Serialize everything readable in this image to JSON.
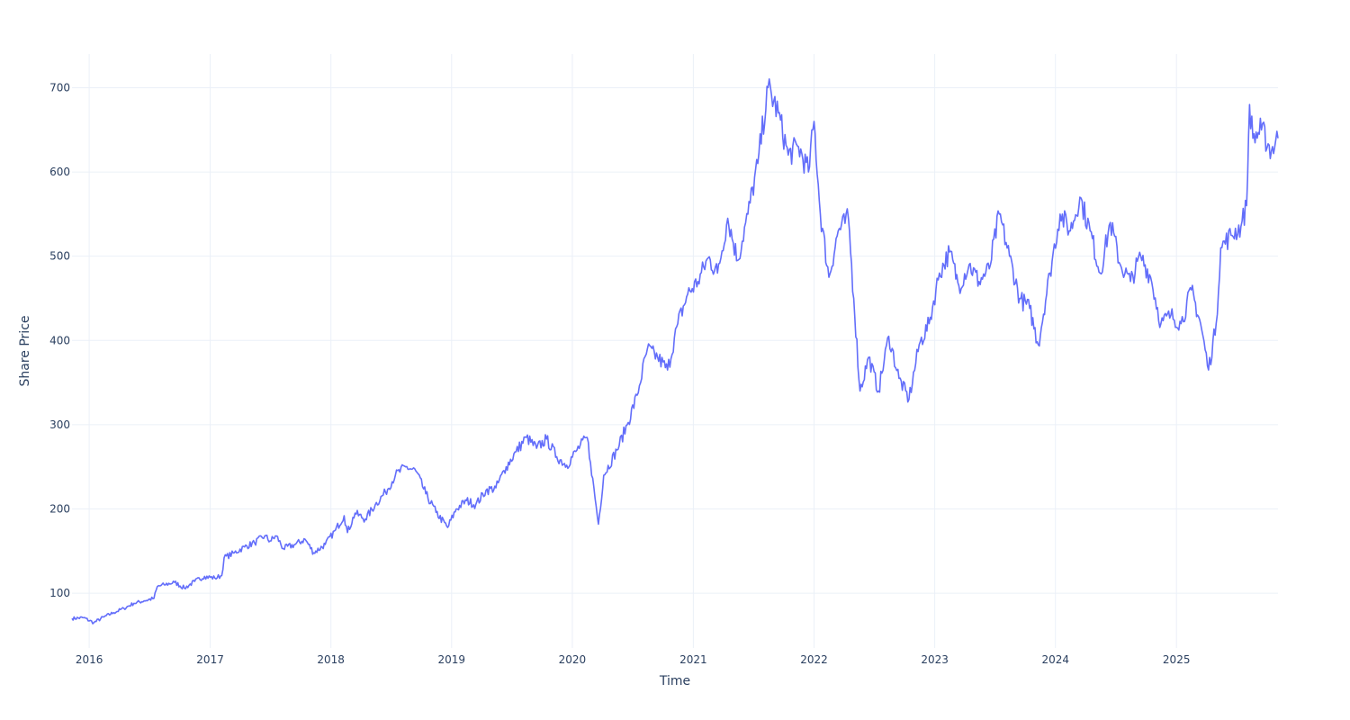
{
  "chart_data": {
    "type": "line",
    "xlabel": "Time",
    "ylabel": "Share Price",
    "xlim": [
      "2015-11-10",
      "2025-11-04"
    ],
    "ylim": [
      35,
      740
    ],
    "grid": true,
    "x_ticks": [
      "2016",
      "2017",
      "2018",
      "2019",
      "2020",
      "2021",
      "2022",
      "2023",
      "2024",
      "2025"
    ],
    "y_ticks": [
      100,
      200,
      300,
      400,
      500,
      600,
      700
    ],
    "series": [
      {
        "color": "#636efa",
        "points": [
          [
            "2015-11-10",
            70
          ],
          [
            "2015-12-15",
            71
          ],
          [
            "2016-01-15",
            65
          ],
          [
            "2016-02-15",
            72
          ],
          [
            "2016-03-15",
            77
          ],
          [
            "2016-04-15",
            82
          ],
          [
            "2016-05-15",
            88
          ],
          [
            "2016-06-15",
            91
          ],
          [
            "2016-07-15",
            94
          ],
          [
            "2016-07-25",
            108
          ],
          [
            "2016-08-15",
            110
          ],
          [
            "2016-09-15",
            113
          ],
          [
            "2016-10-15",
            106
          ],
          [
            "2016-11-15",
            114
          ],
          [
            "2016-12-15",
            120
          ],
          [
            "2017-01-15",
            118
          ],
          [
            "2017-02-05",
            121
          ],
          [
            "2017-02-12",
            142
          ],
          [
            "2017-03-15",
            148
          ],
          [
            "2017-04-15",
            155
          ],
          [
            "2017-05-15",
            160
          ],
          [
            "2017-06-15",
            168
          ],
          [
            "2017-07-01",
            162
          ],
          [
            "2017-07-20",
            168
          ],
          [
            "2017-08-10",
            153
          ],
          [
            "2017-09-15",
            158
          ],
          [
            "2017-10-15",
            164
          ],
          [
            "2017-11-10",
            148
          ],
          [
            "2017-12-15",
            158
          ],
          [
            "2018-01-15",
            175
          ],
          [
            "2018-02-10",
            192
          ],
          [
            "2018-02-20",
            172
          ],
          [
            "2018-03-15",
            195
          ],
          [
            "2018-04-15",
            188
          ],
          [
            "2018-05-15",
            205
          ],
          [
            "2018-06-15",
            220
          ],
          [
            "2018-07-15",
            240
          ],
          [
            "2018-08-15",
            250
          ],
          [
            "2018-09-15",
            245
          ],
          [
            "2018-10-15",
            218
          ],
          [
            "2018-11-15",
            196
          ],
          [
            "2018-12-20",
            178
          ],
          [
            "2019-01-15",
            200
          ],
          [
            "2019-02-15",
            210
          ],
          [
            "2019-03-15",
            205
          ],
          [
            "2019-04-15",
            222
          ],
          [
            "2019-05-15",
            225
          ],
          [
            "2019-06-15",
            250
          ],
          [
            "2019-07-15",
            268
          ],
          [
            "2019-08-15",
            285
          ],
          [
            "2019-09-15",
            272
          ],
          [
            "2019-10-15",
            283
          ],
          [
            "2019-11-15",
            262
          ],
          [
            "2019-12-15",
            252
          ],
          [
            "2020-01-15",
            270
          ],
          [
            "2020-02-15",
            285
          ],
          [
            "2020-02-25",
            255
          ],
          [
            "2020-03-20",
            182
          ],
          [
            "2020-04-05",
            240
          ],
          [
            "2020-05-15",
            270
          ],
          [
            "2020-06-15",
            300
          ],
          [
            "2020-07-15",
            335
          ],
          [
            "2020-08-15",
            390
          ],
          [
            "2020-09-15",
            380
          ],
          [
            "2020-10-15",
            365
          ],
          [
            "2020-11-15",
            420
          ],
          [
            "2020-12-15",
            455
          ],
          [
            "2021-01-15",
            470
          ],
          [
            "2021-02-15",
            498
          ],
          [
            "2021-03-15",
            480
          ],
          [
            "2021-04-15",
            545
          ],
          [
            "2021-05-15",
            495
          ],
          [
            "2021-06-15",
            550
          ],
          [
            "2021-07-15",
            610
          ],
          [
            "2021-08-15",
            700
          ],
          [
            "2021-09-15",
            670
          ],
          [
            "2021-10-15",
            620
          ],
          [
            "2021-11-15",
            630
          ],
          [
            "2021-12-15",
            600
          ],
          [
            "2022-01-01",
            660
          ],
          [
            "2022-01-20",
            550
          ],
          [
            "2022-02-15",
            475
          ],
          [
            "2022-03-15",
            530
          ],
          [
            "2022-04-15",
            545
          ],
          [
            "2022-05-01",
            450
          ],
          [
            "2022-05-20",
            340
          ],
          [
            "2022-06-15",
            380
          ],
          [
            "2022-07-15",
            340
          ],
          [
            "2022-08-15",
            405
          ],
          [
            "2022-09-15",
            355
          ],
          [
            "2022-10-15",
            330
          ],
          [
            "2022-11-15",
            395
          ],
          [
            "2022-12-15",
            420
          ],
          [
            "2023-01-15",
            480
          ],
          [
            "2023-02-15",
            505
          ],
          [
            "2023-03-15",
            465
          ],
          [
            "2023-04-15",
            490
          ],
          [
            "2023-05-15",
            470
          ],
          [
            "2023-06-15",
            485
          ],
          [
            "2023-07-15",
            550
          ],
          [
            "2023-08-15",
            500
          ],
          [
            "2023-09-15",
            450
          ],
          [
            "2023-10-15",
            438
          ],
          [
            "2023-11-10",
            395
          ],
          [
            "2023-12-15",
            480
          ],
          [
            "2024-01-15",
            550
          ],
          [
            "2024-02-15",
            530
          ],
          [
            "2024-03-15",
            570
          ],
          [
            "2024-04-15",
            530
          ],
          [
            "2024-05-15",
            480
          ],
          [
            "2024-06-15",
            540
          ],
          [
            "2024-07-15",
            490
          ],
          [
            "2024-08-15",
            470
          ],
          [
            "2024-09-15",
            500
          ],
          [
            "2024-10-15",
            475
          ],
          [
            "2024-11-15",
            420
          ],
          [
            "2024-12-15",
            430
          ],
          [
            "2025-01-15",
            420
          ],
          [
            "2025-02-15",
            460
          ],
          [
            "2025-03-15",
            420
          ],
          [
            "2025-04-08",
            365
          ],
          [
            "2025-05-01",
            420
          ],
          [
            "2025-05-15",
            510
          ],
          [
            "2025-06-15",
            525
          ],
          [
            "2025-07-15",
            535
          ],
          [
            "2025-08-01",
            560
          ],
          [
            "2025-08-10",
            680
          ],
          [
            "2025-08-20",
            640
          ],
          [
            "2025-09-15",
            650
          ],
          [
            "2025-10-15",
            625
          ],
          [
            "2025-11-04",
            640
          ]
        ]
      }
    ]
  }
}
